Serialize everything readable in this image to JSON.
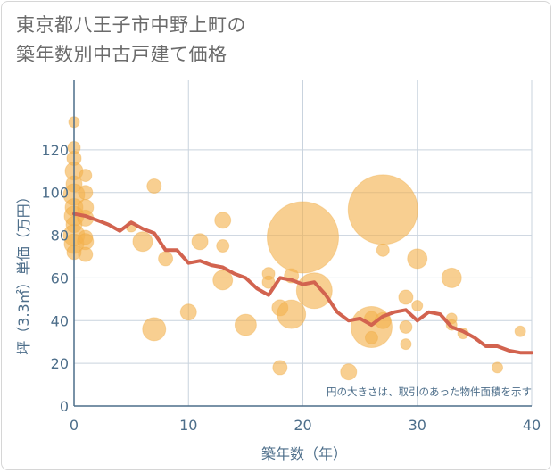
{
  "title_line1": "東京都八王子市中野上町の",
  "title_line2": "築年数別中古戸建て価格",
  "colors": {
    "bubble": "#f4b24e",
    "line": "#d2634f",
    "grid": "#c9d3de",
    "axis": "#4d6e8a"
  },
  "chart_data": {
    "type": "scatter",
    "xlabel": "築年数（年）",
    "ylabel": "坪（3.3㎡）単価（万円）",
    "xlim": [
      0,
      40
    ],
    "ylim": [
      0,
      140
    ],
    "xticks": [
      0,
      10,
      20,
      30,
      40
    ],
    "yticks": [
      0,
      20,
      40,
      60,
      80,
      100,
      120
    ],
    "grid": true,
    "annotation": "円の大きさは、取引のあった物件面積を示す",
    "bubbles": [
      {
        "x": 0,
        "y": 133,
        "s": 6
      },
      {
        "x": 0,
        "y": 121,
        "s": 7
      },
      {
        "x": 0,
        "y": 116,
        "s": 8
      },
      {
        "x": 0,
        "y": 110,
        "s": 10
      },
      {
        "x": 0,
        "y": 104,
        "s": 9
      },
      {
        "x": 0,
        "y": 99,
        "s": 12
      },
      {
        "x": 0,
        "y": 93,
        "s": 10
      },
      {
        "x": 0,
        "y": 89,
        "s": 11
      },
      {
        "x": 0,
        "y": 85,
        "s": 9
      },
      {
        "x": 0,
        "y": 80,
        "s": 12
      },
      {
        "x": 0,
        "y": 76,
        "s": 11
      },
      {
        "x": 0,
        "y": 72,
        "s": 8
      },
      {
        "x": 1,
        "y": 108,
        "s": 7
      },
      {
        "x": 1,
        "y": 100,
        "s": 8
      },
      {
        "x": 1,
        "y": 93,
        "s": 9
      },
      {
        "x": 1,
        "y": 88,
        "s": 9
      },
      {
        "x": 1,
        "y": 79,
        "s": 8
      },
      {
        "x": 1,
        "y": 77,
        "s": 9
      },
      {
        "x": 1,
        "y": 71,
        "s": 8
      },
      {
        "x": 5,
        "y": 84,
        "s": 6
      },
      {
        "x": 6,
        "y": 77,
        "s": 11
      },
      {
        "x": 7,
        "y": 103,
        "s": 8
      },
      {
        "x": 7,
        "y": 36,
        "s": 13
      },
      {
        "x": 8,
        "y": 69,
        "s": 8
      },
      {
        "x": 10,
        "y": 44,
        "s": 9
      },
      {
        "x": 11,
        "y": 77,
        "s": 9
      },
      {
        "x": 13,
        "y": 87,
        "s": 9
      },
      {
        "x": 13,
        "y": 75,
        "s": 7
      },
      {
        "x": 13,
        "y": 59,
        "s": 11
      },
      {
        "x": 15,
        "y": 38,
        "s": 12
      },
      {
        "x": 17,
        "y": 62,
        "s": 7
      },
      {
        "x": 17,
        "y": 58,
        "s": 7
      },
      {
        "x": 18,
        "y": 46,
        "s": 9
      },
      {
        "x": 18,
        "y": 18,
        "s": 8
      },
      {
        "x": 19,
        "y": 61,
        "s": 8
      },
      {
        "x": 19,
        "y": 43,
        "s": 16
      },
      {
        "x": 20,
        "y": 79,
        "s": 40
      },
      {
        "x": 21,
        "y": 54,
        "s": 20
      },
      {
        "x": 24,
        "y": 16,
        "s": 9
      },
      {
        "x": 26,
        "y": 41,
        "s": 8
      },
      {
        "x": 26,
        "y": 37,
        "s": 23
      },
      {
        "x": 26,
        "y": 32,
        "s": 7
      },
      {
        "x": 27,
        "y": 92,
        "s": 39
      },
      {
        "x": 27,
        "y": 73,
        "s": 7
      },
      {
        "x": 27,
        "y": 40,
        "s": 9
      },
      {
        "x": 29,
        "y": 51,
        "s": 8
      },
      {
        "x": 29,
        "y": 37,
        "s": 7
      },
      {
        "x": 29,
        "y": 29,
        "s": 6
      },
      {
        "x": 30,
        "y": 69,
        "s": 11
      },
      {
        "x": 30,
        "y": 47,
        "s": 6
      },
      {
        "x": 33,
        "y": 60,
        "s": 11
      },
      {
        "x": 33,
        "y": 41,
        "s": 6
      },
      {
        "x": 33,
        "y": 38,
        "s": 6
      },
      {
        "x": 34,
        "y": 34,
        "s": 6
      },
      {
        "x": 37,
        "y": 18,
        "s": 6
      },
      {
        "x": 39,
        "y": 35,
        "s": 6
      }
    ],
    "trend": {
      "x": [
        0,
        1,
        2,
        3,
        4,
        5,
        6,
        7,
        8,
        9,
        10,
        11,
        12,
        13,
        14,
        15,
        16,
        17,
        18,
        19,
        20,
        21,
        22,
        23,
        24,
        25,
        26,
        27,
        28,
        29,
        30,
        31,
        32,
        33,
        34,
        35,
        36,
        37,
        38,
        39,
        40
      ],
      "y": [
        90,
        89,
        87,
        85,
        82,
        86,
        83,
        81,
        73,
        73,
        67,
        68,
        66,
        65,
        62,
        60,
        55,
        52,
        60,
        59,
        57,
        58,
        52,
        44,
        40,
        41,
        38,
        42,
        44,
        45,
        40,
        44,
        43,
        37,
        35,
        32,
        28,
        28,
        26,
        25,
        25
      ]
    }
  }
}
